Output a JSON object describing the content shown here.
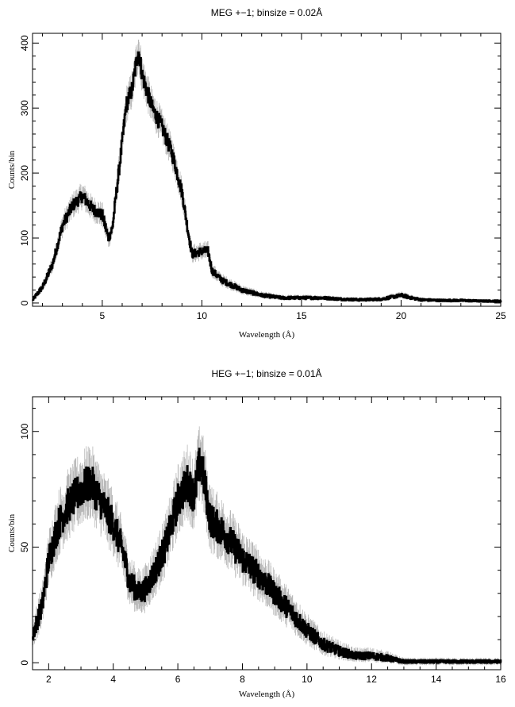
{
  "chart_data": [
    {
      "type": "line",
      "title": "MEG +−1; binsize = 0.02Å",
      "xlabel": "Wavelength (Å)",
      "ylabel": "Counts/bin",
      "xlim": [
        1.5,
        25
      ],
      "ylim": [
        -5,
        415
      ],
      "xticks": [
        5,
        10,
        15,
        20,
        25
      ],
      "xtick_labels": [
        "5",
        "10",
        "15",
        "20",
        "25"
      ],
      "yticks": [
        0,
        100,
        200,
        300,
        400
      ],
      "ytick_labels": [
        "0",
        "100",
        "200",
        "300",
        "400"
      ],
      "grid": false,
      "series_color": "#000000",
      "error_color": "#b8b8b8",
      "series": [
        {
          "x": [
            1.5,
            2.0,
            2.5,
            3.0,
            3.5,
            4.0,
            4.5,
            5.0,
            5.3,
            5.5,
            5.7,
            6.0,
            6.2,
            6.5,
            6.8,
            7.0,
            7.5,
            8.0,
            8.5,
            9.0,
            9.3,
            9.5,
            10.0,
            10.3,
            10.5,
            11.0,
            12.0,
            13.0,
            14.0,
            15.0,
            16.0,
            17.0,
            18.0,
            19.0,
            20.0,
            20.5,
            21.0,
            22.0,
            23.0,
            24.0,
            25.0
          ],
          "y": [
            5,
            25,
            60,
            120,
            150,
            165,
            145,
            135,
            100,
            115,
            170,
            250,
            305,
            330,
            390,
            350,
            300,
            270,
            230,
            170,
            110,
            75,
            80,
            80,
            50,
            35,
            20,
            12,
            8,
            8,
            8,
            6,
            5,
            6,
            12,
            8,
            5,
            4,
            4,
            3,
            3
          ]
        }
      ]
    },
    {
      "type": "line",
      "title": "HEG +−1; binsize = 0.01Å",
      "xlabel": "Wavelength (Å)",
      "ylabel": "Counts/bin",
      "xlim": [
        1.5,
        16
      ],
      "ylim": [
        -3,
        115
      ],
      "xticks": [
        2,
        4,
        6,
        8,
        10,
        12,
        14,
        16
      ],
      "xtick_labels": [
        "2",
        "4",
        "6",
        "8",
        "10",
        "12",
        "14",
        "16"
      ],
      "yticks": [
        0,
        50,
        100
      ],
      "ytick_labels": [
        "0",
        "50",
        "100"
      ],
      "grid": false,
      "series_color": "#000000",
      "error_color": "#b8b8b8",
      "series": [
        {
          "x": [
            1.5,
            1.8,
            2.0,
            2.3,
            2.6,
            3.0,
            3.3,
            3.6,
            4.0,
            4.3,
            4.5,
            4.8,
            5.0,
            5.3,
            5.6,
            6.0,
            6.3,
            6.5,
            6.7,
            7.0,
            7.5,
            8.0,
            8.5,
            9.0,
            9.5,
            10.0,
            10.5,
            11.0,
            11.5,
            12.0,
            12.5,
            12.8,
            13.0,
            14.0,
            15.0,
            16.0
          ],
          "y": [
            12,
            25,
            45,
            60,
            68,
            75,
            78,
            70,
            60,
            48,
            35,
            30,
            32,
            40,
            50,
            70,
            78,
            72,
            88,
            62,
            55,
            45,
            38,
            30,
            22,
            14,
            8,
            5,
            3,
            3,
            2,
            1,
            0.5,
            0.5,
            0.5,
            0.5
          ]
        }
      ]
    }
  ]
}
